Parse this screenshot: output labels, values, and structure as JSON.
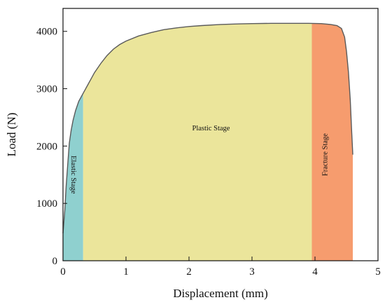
{
  "chart_data": {
    "type": "area",
    "title": "",
    "xlabel": "Displacement (mm)",
    "ylabel": "Load (N)",
    "xlim": [
      0,
      5
    ],
    "ylim": [
      0,
      4400
    ],
    "xticks": [
      0,
      1,
      2,
      3,
      4,
      5
    ],
    "yticks": [
      0,
      1000,
      2000,
      3000,
      4000
    ],
    "grid": false,
    "regions": [
      {
        "name": "Elastic Stage",
        "x_start": 0.0,
        "x_end": 0.32,
        "color": "#8fd0cf"
      },
      {
        "name": "Plastic Stage",
        "x_start": 0.32,
        "x_end": 3.95,
        "color": "#ebe59b"
      },
      {
        "name": "Fracture Stage",
        "x_start": 3.95,
        "x_end": 4.6,
        "color": "#f69c6e"
      }
    ],
    "series": [
      {
        "x": [
          0.0,
          0.03,
          0.05,
          0.08,
          0.1,
          0.13,
          0.16,
          0.2,
          0.25,
          0.3,
          0.32,
          0.4,
          0.5,
          0.6,
          0.7,
          0.8,
          0.9,
          1.0,
          1.2,
          1.4,
          1.6,
          1.8,
          2.0,
          2.2,
          2.5,
          2.8,
          3.0,
          3.3,
          3.6,
          3.9,
          4.1,
          4.25,
          4.35,
          4.42,
          4.47,
          4.5,
          4.53,
          4.56,
          4.58,
          4.6
        ],
        "y": [
          480,
          900,
          1300,
          1750,
          2050,
          2280,
          2450,
          2620,
          2780,
          2880,
          2920,
          3080,
          3280,
          3440,
          3580,
          3690,
          3770,
          3830,
          3920,
          3980,
          4030,
          4060,
          4085,
          4100,
          4120,
          4130,
          4135,
          4140,
          4140,
          4140,
          4135,
          4120,
          4100,
          4050,
          3900,
          3650,
          3300,
          2800,
          2300,
          1850
        ]
      }
    ]
  }
}
